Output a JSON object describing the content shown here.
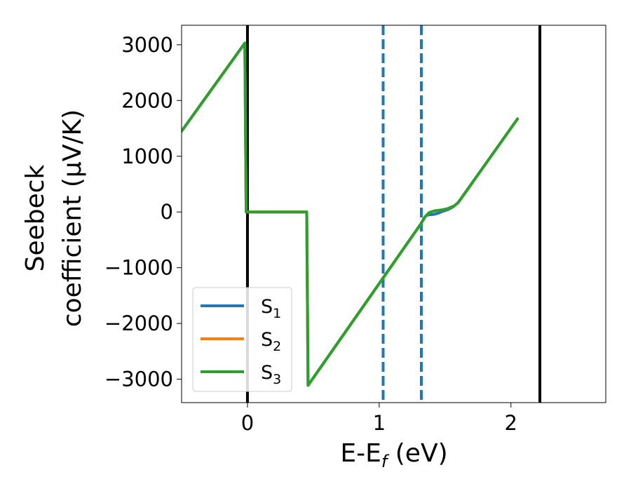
{
  "chart_data": {
    "type": "line",
    "xlabel": {
      "main": "E-E",
      "sub": "f",
      "unit": " (eV)"
    },
    "ylabel": {
      "line1": "Seebeck",
      "line2": "coefficient  (μV/K)"
    },
    "xlim": [
      -0.5,
      2.72
    ],
    "ylim": [
      -3420,
      3350
    ],
    "x_ticks": [
      0,
      1,
      2
    ],
    "x_tick_labels": [
      "0",
      "1",
      "2"
    ],
    "y_ticks": [
      3000,
      2000,
      1000,
      0,
      -1000,
      -2000,
      -3000
    ],
    "y_tick_labels": [
      "3000",
      "2000",
      "1000",
      "0",
      "−1000",
      "−2000",
      "−3000"
    ],
    "grid": false,
    "legend_position": "lower-left",
    "series": [
      {
        "name": "S",
        "sub": "1",
        "color": "#1f77b4",
        "points": [
          [
            -0.5,
            1450
          ],
          [
            -0.02,
            3030
          ],
          [
            -0.01,
            0
          ],
          [
            0.45,
            0
          ],
          [
            0.46,
            -3110
          ],
          [
            1.32,
            -200
          ],
          [
            1.34,
            -110
          ],
          [
            1.36,
            -60
          ],
          [
            1.38,
            -50
          ],
          [
            1.41,
            -45
          ],
          [
            1.45,
            -20
          ],
          [
            1.48,
            10
          ],
          [
            1.52,
            40
          ],
          [
            1.56,
            90
          ],
          [
            1.6,
            170
          ],
          [
            2.05,
            1670
          ]
        ]
      },
      {
        "name": "S",
        "sub": "2",
        "color": "#ff7f0e",
        "points": [
          [
            -0.5,
            1450
          ],
          [
            -0.02,
            3030
          ],
          [
            -0.01,
            0
          ],
          [
            0.45,
            0
          ],
          [
            0.46,
            -3110
          ],
          [
            1.32,
            -200
          ],
          [
            1.35,
            -80
          ],
          [
            1.38,
            -10
          ],
          [
            1.42,
            20
          ],
          [
            1.47,
            35
          ],
          [
            1.52,
            60
          ],
          [
            1.57,
            110
          ],
          [
            1.6,
            170
          ],
          [
            2.05,
            1670
          ]
        ]
      },
      {
        "name": "S",
        "sub": "3",
        "color": "#2ca02c",
        "points": [
          [
            -0.5,
            1450
          ],
          [
            -0.02,
            3030
          ],
          [
            -0.01,
            0
          ],
          [
            0.45,
            0
          ],
          [
            0.46,
            -3110
          ],
          [
            1.32,
            -200
          ],
          [
            1.35,
            -80
          ],
          [
            1.38,
            -10
          ],
          [
            1.42,
            20
          ],
          [
            1.47,
            35
          ],
          [
            1.52,
            60
          ],
          [
            1.57,
            110
          ],
          [
            1.6,
            170
          ],
          [
            2.05,
            1670
          ]
        ]
      }
    ],
    "vertical_lines": [
      {
        "x": 0.0,
        "style": "solid",
        "color": "#000000"
      },
      {
        "x": 2.22,
        "style": "solid",
        "color": "#000000"
      },
      {
        "x": 1.03,
        "style": "dashed",
        "color": "#1f77b4"
      },
      {
        "x": 1.32,
        "style": "dashed",
        "color": "#1f77b4"
      }
    ]
  }
}
